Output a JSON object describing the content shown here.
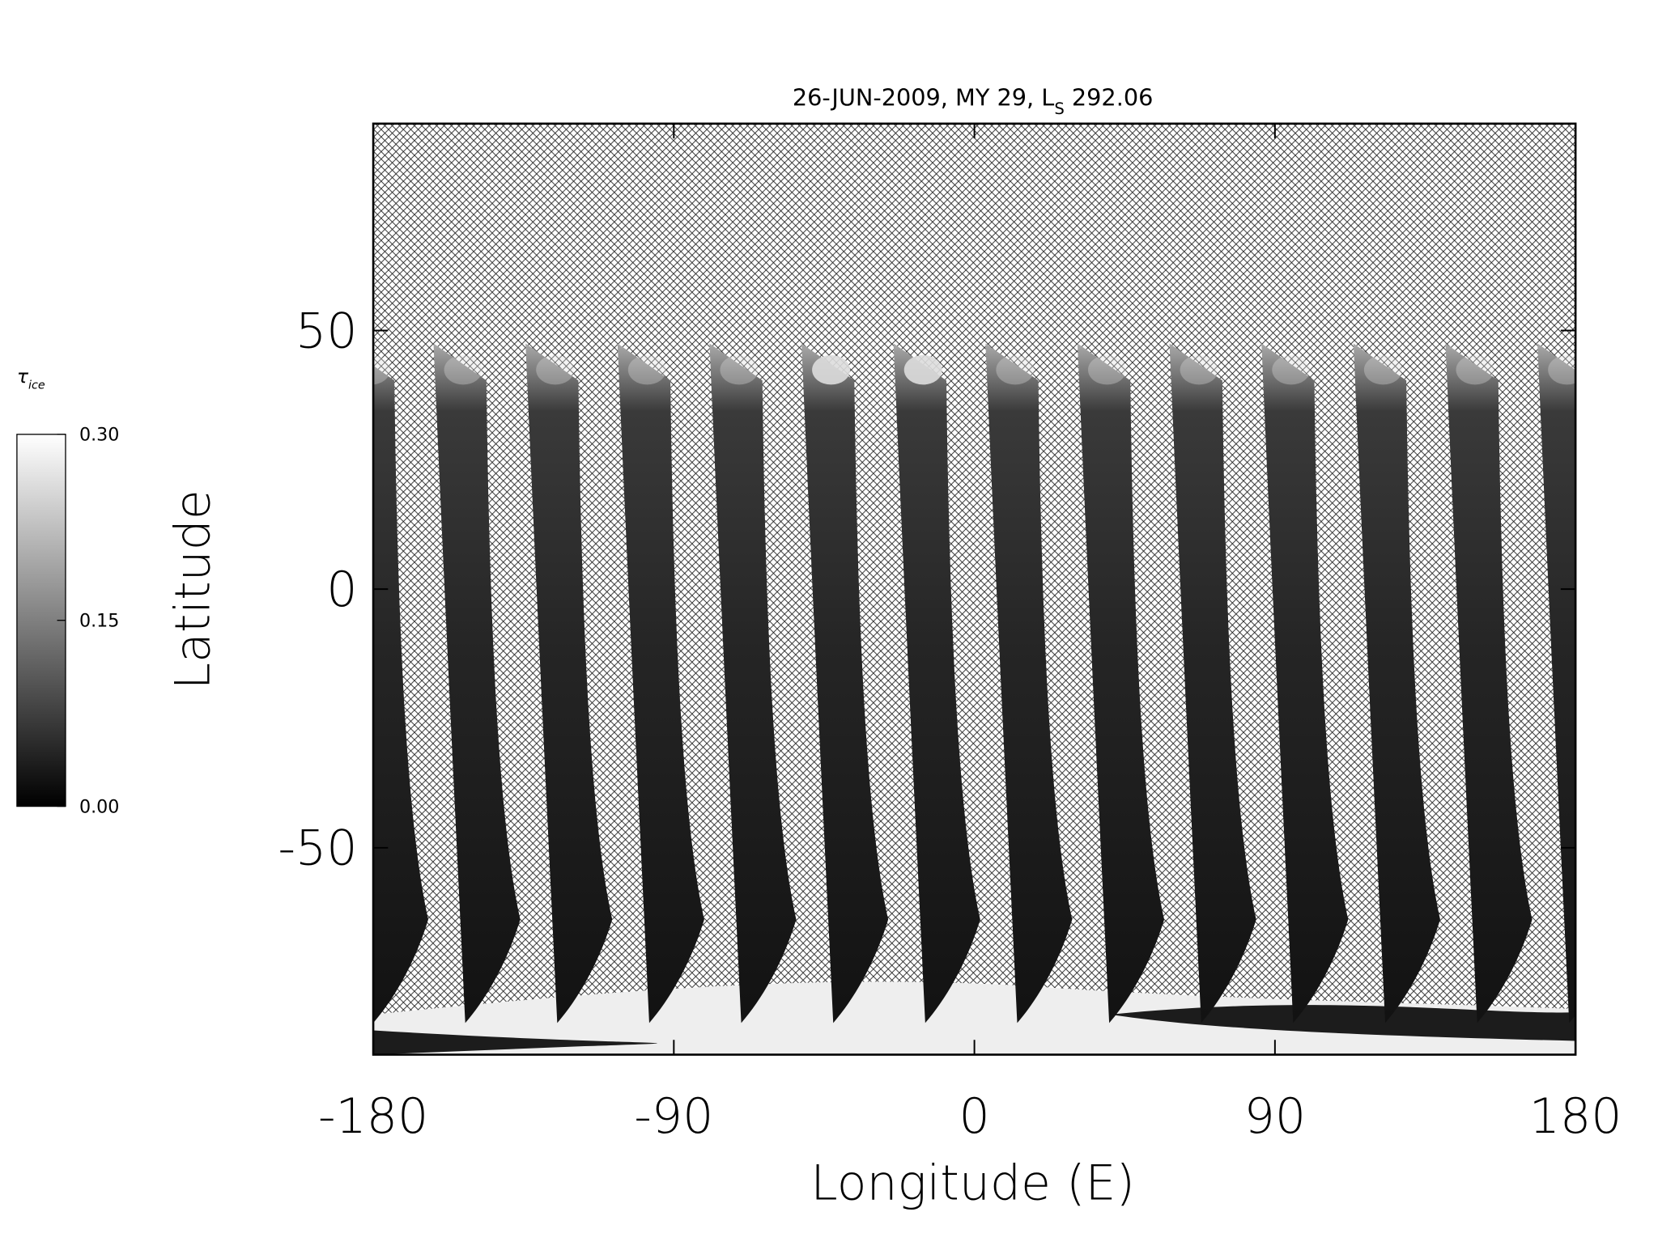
{
  "chart_data": {
    "type": "swath-map",
    "title": {
      "text": "26-JUN-2009, MY 29,  L",
      "subscript": "S",
      "suffix": " 292.06"
    },
    "xlabel": "Longitude (E)",
    "ylabel": "Latitude",
    "xlim": [
      -180,
      180
    ],
    "xticks": [
      -180,
      -90,
      0,
      90,
      180
    ],
    "ylim": [
      -90,
      90
    ],
    "yticks": [
      -50,
      0,
      50
    ],
    "colorbar": {
      "label": "τ",
      "label_subscript": "ice",
      "clim": [
        0,
        0.3
      ],
      "ticks": [
        {
          "value": 0,
          "label": "0.00"
        },
        {
          "value": 0.15,
          "label": "0.15"
        },
        {
          "value": 0.3,
          "label": "0.30"
        }
      ],
      "colors": [
        "#000000",
        "#ffffff"
      ]
    }
  }
}
